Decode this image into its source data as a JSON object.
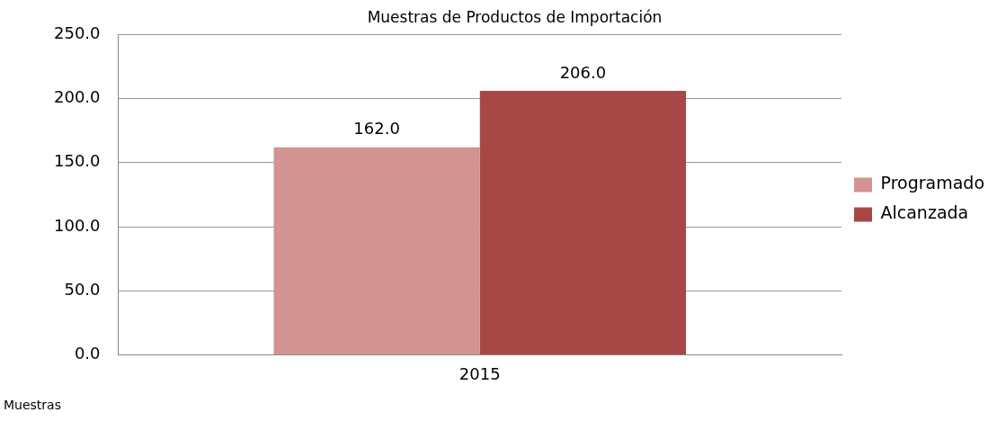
{
  "chart_data": {
    "type": "bar",
    "title": "Muestras de Productos de Importación",
    "categories": [
      "2015"
    ],
    "series": [
      {
        "name": "Programado",
        "color": "#d39391",
        "values": [
          162
        ],
        "value_labels": [
          "162.0"
        ]
      },
      {
        "name": "Alcanzada",
        "color": "#a84846",
        "values": [
          206
        ],
        "value_labels": [
          "206.0"
        ]
      }
    ],
    "ylim": [
      0,
      250
    ],
    "yticks": [
      {
        "value": 0,
        "label": "0.0"
      },
      {
        "value": 50,
        "label": "50.0"
      },
      {
        "value": 100,
        "label": "100.0"
      },
      {
        "value": 150,
        "label": "150.0"
      },
      {
        "value": 200,
        "label": "200.0"
      },
      {
        "value": 250,
        "label": "250.0"
      }
    ],
    "grid": "y",
    "legend": "right",
    "annotations": [
      "Muestras"
    ]
  }
}
